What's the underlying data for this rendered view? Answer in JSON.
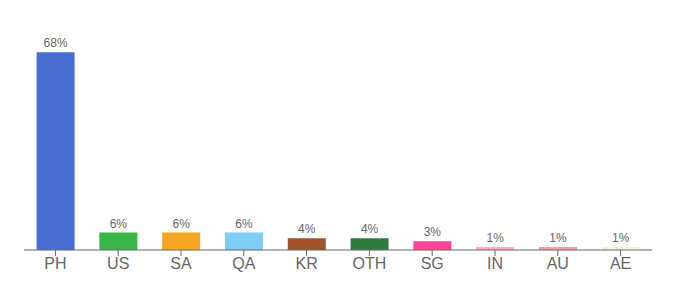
{
  "chart_data": {
    "type": "bar",
    "categories": [
      "PH",
      "US",
      "SA",
      "QA",
      "KR",
      "OTH",
      "SG",
      "IN",
      "AU",
      "AE"
    ],
    "values": [
      68,
      6,
      6,
      6,
      4,
      4,
      3,
      1,
      1,
      1
    ],
    "value_labels": [
      "68%",
      "6%",
      "6%",
      "6%",
      "4%",
      "4%",
      "3%",
      "1%",
      "1%",
      "1%"
    ],
    "colors": [
      "#4a6fd4",
      "#3ab54a",
      "#f5a623",
      "#7ecef4",
      "#a0522d",
      "#2d7a3a",
      "#ff4499",
      "#ffaacc",
      "#f0a0a0",
      "#f5f0d8"
    ],
    "ylim": [
      0,
      75
    ],
    "data_labels": true,
    "tick_labels": "x",
    "grid": false
  }
}
